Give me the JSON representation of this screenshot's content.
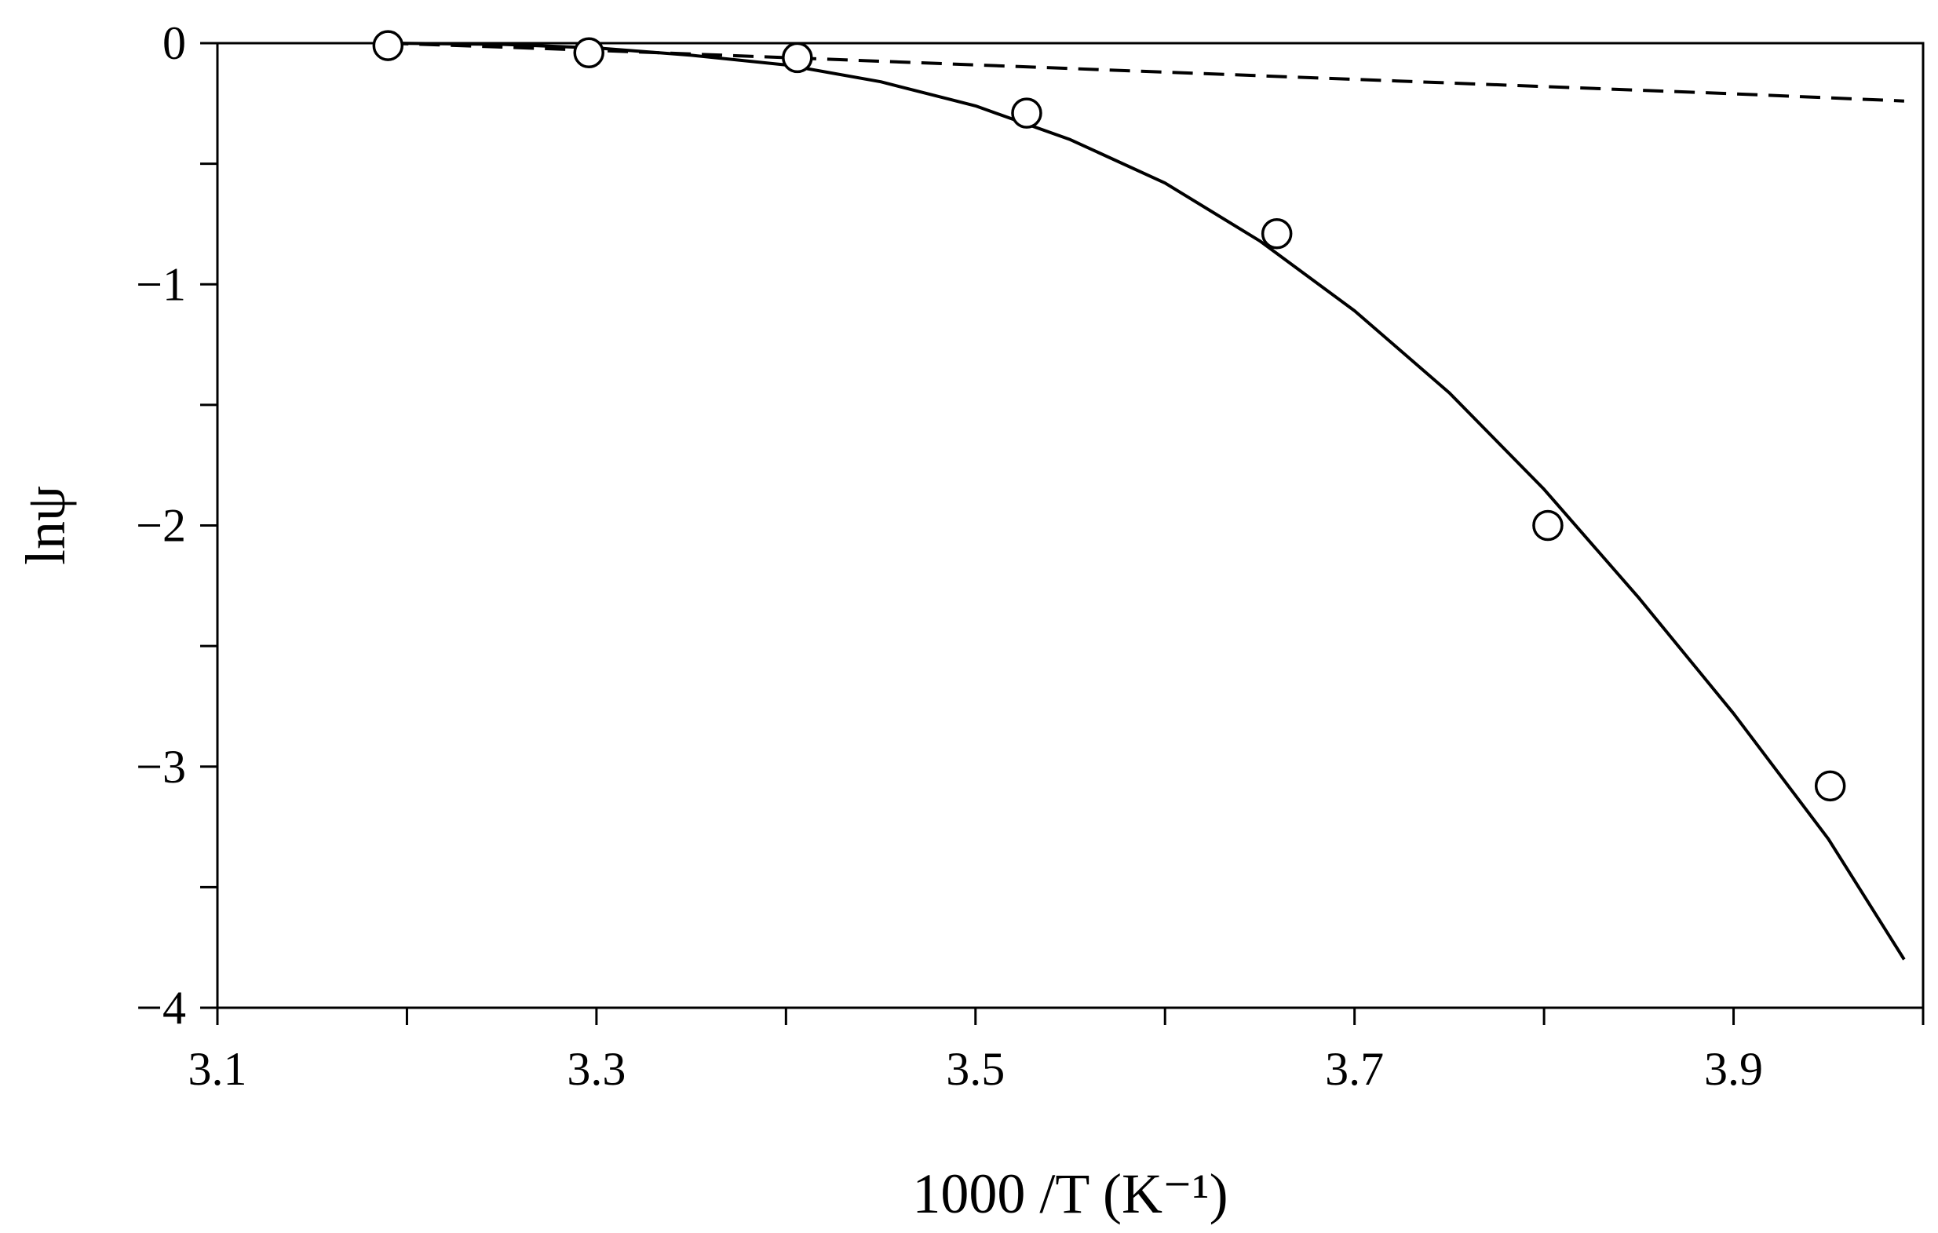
{
  "chart_data": {
    "type": "scatter",
    "title": "",
    "xlabel": "1000 /T (K⁻¹)",
    "ylabel": "lnψ",
    "xlim": [
      3.1,
      4.0
    ],
    "ylim": [
      -4,
      0
    ],
    "x_tick_labels": [
      "3.1",
      "3.3",
      "3.5",
      "3.7",
      "3.9"
    ],
    "x_tick_values": [
      3.1,
      3.3,
      3.5,
      3.7,
      3.9
    ],
    "x_minor_ticks": [
      3.2,
      3.4,
      3.6,
      3.8,
      4.0
    ],
    "y_tick_labels": [
      "0",
      "−1",
      "−2",
      "−3",
      "−4"
    ],
    "y_tick_values": [
      0,
      -1,
      -2,
      -3,
      -4
    ],
    "y_minor_ticks": [
      -0.5,
      -1.5,
      -2.5,
      -3.5
    ],
    "grid": false,
    "series": [
      {
        "style": "markers-open-circle",
        "x": [
          3.19,
          3.296,
          3.406,
          3.527,
          3.659,
          3.802,
          3.951
        ],
        "y": [
          -0.01,
          -0.04,
          -0.06,
          -0.29,
          -0.79,
          -2.0,
          -3.08
        ]
      },
      {
        "style": "line-solid",
        "x": [
          3.19,
          3.25,
          3.3,
          3.35,
          3.4,
          3.45,
          3.5,
          3.55,
          3.6,
          3.65,
          3.7,
          3.75,
          3.8,
          3.85,
          3.9,
          3.95,
          3.99
        ],
        "y": [
          0.0,
          -0.005,
          -0.02,
          -0.05,
          -0.09,
          -0.16,
          -0.26,
          -0.4,
          -0.58,
          -0.82,
          -1.11,
          -1.45,
          -1.85,
          -2.3,
          -2.78,
          -3.3,
          -3.8
        ]
      },
      {
        "style": "line-dashed",
        "x": [
          3.19,
          3.3,
          3.4,
          3.5,
          3.6,
          3.7,
          3.8,
          3.9,
          3.99
        ],
        "y": [
          0.0,
          -0.03,
          -0.06,
          -0.09,
          -0.12,
          -0.15,
          -0.18,
          -0.21,
          -0.24
        ]
      }
    ]
  }
}
